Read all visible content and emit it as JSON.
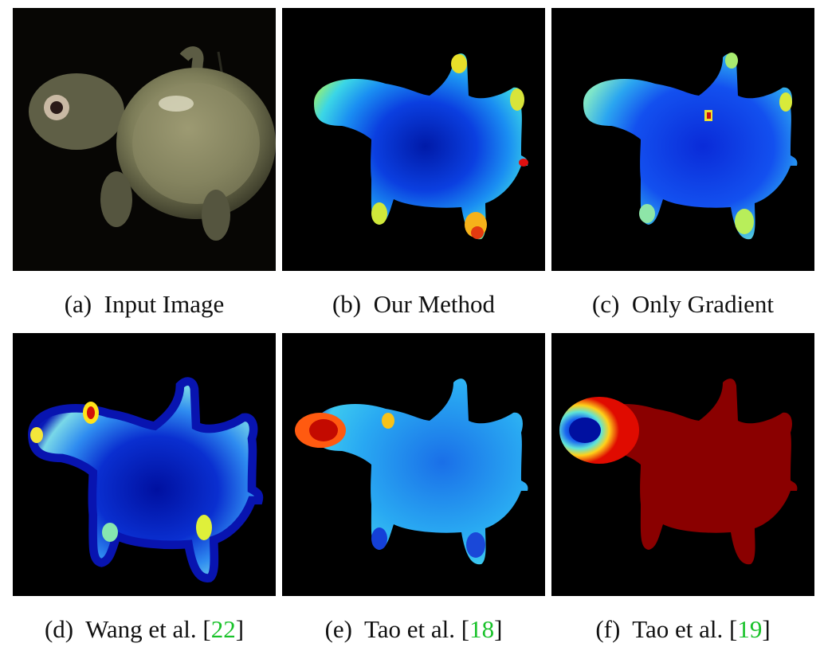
{
  "figure": {
    "panels": [
      {
        "label": "(a)",
        "title": "Input Image",
        "ref": ""
      },
      {
        "label": "(b)",
        "title": "Our Method",
        "ref": ""
      },
      {
        "label": "(c)",
        "title": "Only Gradient",
        "ref": ""
      },
      {
        "label": "(d)",
        "title": "Wang et al. [",
        "ref": "22",
        "suffix": "]"
      },
      {
        "label": "(e)",
        "title": "Tao et al. [",
        "ref": "18",
        "suffix": "]"
      },
      {
        "label": "(f)",
        "title": "Tao et al. [",
        "ref": "19",
        "suffix": "]"
      }
    ],
    "colors": {
      "background": "#000000",
      "citation": "#19c22a",
      "caption_text": "#111111"
    }
  }
}
